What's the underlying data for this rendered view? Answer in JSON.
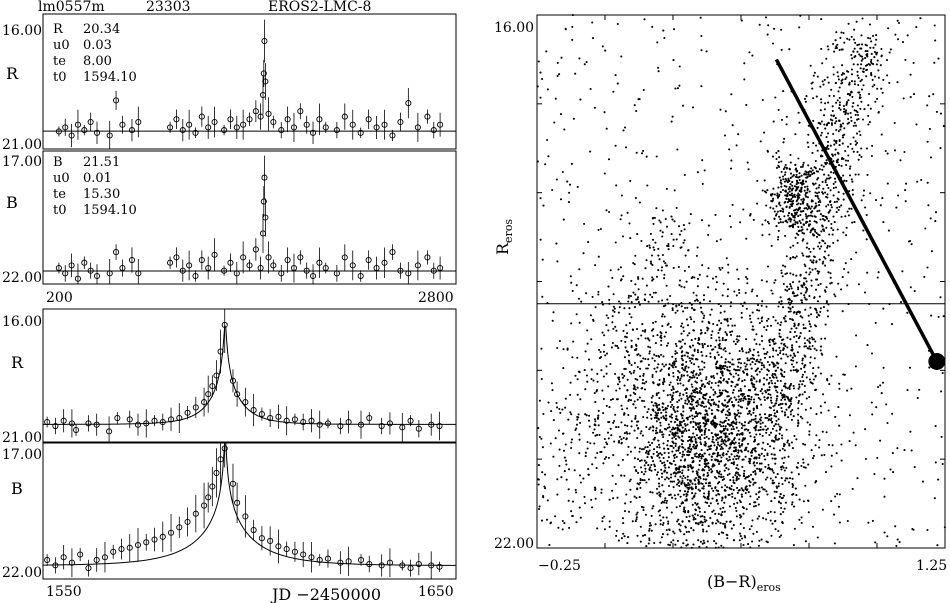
{
  "header": {
    "field": "lm0557m",
    "star_id": "23303",
    "event": "EROS2-LMC-8"
  },
  "x_label": "JD −2450000",
  "chart_data": [
    {
      "panel": "R-full",
      "type": "scatter",
      "band": "R",
      "ylim": [
        21.0,
        16.0
      ],
      "ytick_labels": [
        "16.00",
        "21.00"
      ],
      "xlim": [
        200,
        2800
      ],
      "xtick_labels": [],
      "baseline": 20.34,
      "fit_params": [
        {
          "key": "R",
          "value": "20.34"
        },
        {
          "key": "u0",
          "value": "0.03"
        },
        {
          "key": "te",
          "value": "8.00"
        },
        {
          "key": "t0",
          "value": "1594.10"
        }
      ],
      "x": [
        300,
        340,
        380,
        420,
        460,
        500,
        540,
        620,
        660,
        700,
        760,
        800,
        1000,
        1040,
        1080,
        1120,
        1160,
        1200,
        1240,
        1280,
        1340,
        1380,
        1420,
        1460,
        1500,
        1540,
        1570,
        1585,
        1590,
        1594,
        1600,
        1620,
        1650,
        1700,
        1740,
        1780,
        1820,
        1860,
        1900,
        1940,
        1980,
        2050,
        2100,
        2150,
        2200,
        2250,
        2300,
        2350,
        2400,
        2450,
        2500,
        2560,
        2620,
        2660,
        2700
      ],
      "y": [
        20.35,
        20.2,
        20.5,
        20.1,
        20.3,
        20.0,
        20.4,
        20.5,
        19.2,
        20.1,
        20.3,
        20.0,
        20.2,
        19.9,
        20.3,
        20.1,
        20.4,
        19.8,
        20.2,
        20.0,
        20.3,
        19.9,
        20.2,
        20.1,
        19.9,
        19.6,
        19.8,
        19.0,
        18.2,
        17.0,
        18.5,
        19.7,
        20.0,
        20.3,
        19.9,
        20.2,
        19.6,
        20.1,
        20.4,
        19.9,
        20.2,
        20.3,
        19.8,
        20.1,
        20.4,
        19.9,
        20.2,
        20.1,
        20.5,
        20.0,
        19.3,
        20.2,
        19.8,
        20.3,
        20.1
      ]
    },
    {
      "panel": "B-full",
      "type": "scatter",
      "band": "B",
      "ylim": [
        22.0,
        17.0
      ],
      "ytick_labels": [
        "17.00",
        "22.00"
      ],
      "xlim": [
        200,
        2800
      ],
      "xtick_labels": [
        "200",
        "2800"
      ],
      "baseline": 21.51,
      "fit_params": [
        {
          "key": "B",
          "value": "21.51"
        },
        {
          "key": "u0",
          "value": "0.01"
        },
        {
          "key": "te",
          "value": "15.30"
        },
        {
          "key": "t0",
          "value": "1594.10"
        }
      ],
      "x": [
        300,
        340,
        380,
        420,
        460,
        500,
        540,
        620,
        660,
        700,
        760,
        800,
        1000,
        1040,
        1080,
        1120,
        1160,
        1200,
        1240,
        1280,
        1340,
        1380,
        1420,
        1460,
        1500,
        1540,
        1570,
        1585,
        1590,
        1594,
        1600,
        1620,
        1650,
        1700,
        1740,
        1780,
        1820,
        1860,
        1900,
        1940,
        1980,
        2050,
        2100,
        2150,
        2200,
        2250,
        2300,
        2350,
        2400,
        2450,
        2500,
        2560,
        2620,
        2660,
        2700
      ],
      "y": [
        21.4,
        21.6,
        21.3,
        21.8,
        21.2,
        21.5,
        21.7,
        21.6,
        20.8,
        21.4,
        21.1,
        21.6,
        21.2,
        21.0,
        21.5,
        21.3,
        21.7,
        21.1,
        21.4,
        20.9,
        21.5,
        21.2,
        21.6,
        21.0,
        21.3,
        20.7,
        21.4,
        20.1,
        18.9,
        18.0,
        19.5,
        21.0,
        21.3,
        21.6,
        21.1,
        21.4,
        21.0,
        21.5,
        21.7,
        21.2,
        21.4,
        21.6,
        21.0,
        21.3,
        21.7,
        21.1,
        21.4,
        21.2,
        20.8,
        21.5,
        21.6,
        21.3,
        21.0,
        21.5,
        21.4
      ]
    },
    {
      "panel": "R-zoom",
      "type": "line",
      "band": "R",
      "ylim": [
        21.0,
        16.0
      ],
      "ytick_labels": [
        "16.00",
        "21.00"
      ],
      "xlim": [
        1550,
        1650
      ],
      "xtick_labels": [],
      "baseline": 20.34,
      "t0": 1594.1,
      "u0": 0.03,
      "te": 8.0,
      "x": [
        1551,
        1553,
        1555,
        1557,
        1558,
        1561,
        1563,
        1566,
        1568,
        1571,
        1573,
        1575,
        1577,
        1579,
        1581,
        1583,
        1585,
        1587,
        1589,
        1590,
        1591,
        1592,
        1593,
        1594,
        1596,
        1597,
        1599,
        1601,
        1603,
        1605,
        1607,
        1609,
        1611,
        1613,
        1615,
        1617,
        1619,
        1622,
        1624,
        1627,
        1629,
        1632,
        1634,
        1637,
        1639,
        1641,
        1644,
        1646
      ],
      "y": [
        20.25,
        20.4,
        20.2,
        20.3,
        20.55,
        20.3,
        20.35,
        20.6,
        20.1,
        20.15,
        20.35,
        20.3,
        20.2,
        20.25,
        20.15,
        20.1,
        19.9,
        19.7,
        19.5,
        19.2,
        18.9,
        18.5,
        17.6,
        16.6,
        18.7,
        19.2,
        19.5,
        19.8,
        19.95,
        20.1,
        20.05,
        20.2,
        20.15,
        20.25,
        20.2,
        20.35,
        20.3,
        20.4,
        20.25,
        20.35,
        20.1,
        20.4,
        20.3,
        20.45,
        20.2,
        20.5,
        20.35,
        20.4
      ]
    },
    {
      "panel": "B-zoom",
      "type": "line",
      "band": "B",
      "ylim": [
        22.0,
        17.0
      ],
      "ytick_labels": [
        "17.00",
        "22.00"
      ],
      "xlim": [
        1550,
        1650
      ],
      "xtick_labels": [
        "1550",
        "1650"
      ],
      "baseline": 21.51,
      "t0": 1594.1,
      "u0": 0.01,
      "te": 15.3,
      "x": [
        1551,
        1553,
        1555,
        1557,
        1559,
        1561,
        1563,
        1565,
        1567,
        1569,
        1571,
        1573,
        1575,
        1577,
        1579,
        1581,
        1583,
        1585,
        1587,
        1589,
        1590,
        1591,
        1592,
        1593,
        1594,
        1596,
        1597,
        1599,
        1601,
        1603,
        1605,
        1607,
        1609,
        1611,
        1613,
        1615,
        1617,
        1619,
        1622,
        1624,
        1627,
        1629,
        1632,
        1634,
        1637,
        1639,
        1641,
        1644,
        1646
      ],
      "y": [
        21.3,
        21.5,
        21.2,
        21.4,
        21.1,
        21.6,
        21.3,
        21.2,
        21.0,
        20.9,
        20.85,
        20.75,
        20.65,
        20.55,
        20.45,
        20.3,
        20.1,
        19.9,
        19.6,
        19.3,
        19.0,
        18.6,
        18.1,
        17.6,
        17.2,
        18.5,
        19.2,
        19.7,
        20.2,
        20.5,
        20.6,
        20.8,
        20.9,
        21.0,
        21.1,
        21.2,
        21.3,
        21.25,
        21.4,
        21.35,
        21.3,
        21.45,
        21.5,
        21.4,
        21.5,
        21.6,
        21.45,
        21.5,
        21.55
      ]
    },
    {
      "panel": "CMD",
      "type": "scatter",
      "xlabel": "(B−R)",
      "xlabel_sub": "eros",
      "ylabel": "R",
      "ylabel_sub": "eros",
      "xlim": [
        -0.25,
        1.25
      ],
      "ylim": [
        22.0,
        16.0
      ],
      "xtick_labels": [
        "−0.25",
        "1.25"
      ],
      "ytick_labels": [
        "16.00",
        "22.00"
      ],
      "reference_line_y": 19.25,
      "extinction_vector": {
        "from": [
          0.63,
          16.5
        ],
        "to": [
          1.22,
          19.9
        ]
      },
      "marked_star": {
        "x": 1.22,
        "y": 19.9
      },
      "populations": [
        {
          "name": "main-sequence-clump",
          "cx": 0.38,
          "cy": 20.7,
          "sx": 0.18,
          "sy": 0.75,
          "n": 2600
        },
        {
          "name": "red-giant-clump",
          "cx": 0.7,
          "cy": 18.05,
          "sx": 0.05,
          "sy": 0.22,
          "n": 320
        },
        {
          "name": "red-giant-branch",
          "from": [
            0.62,
            20.5
          ],
          "to": [
            0.95,
            16.2
          ],
          "width": 0.06,
          "n": 900
        },
        {
          "name": "blue-plume",
          "from": [
            -0.25,
            21.8
          ],
          "to": [
            0.25,
            18.2
          ],
          "width": 0.09,
          "n": 300
        },
        {
          "name": "field",
          "xrange": [
            -0.25,
            1.25
          ],
          "yrange": [
            16.0,
            22.0
          ],
          "n": 700
        }
      ]
    }
  ]
}
